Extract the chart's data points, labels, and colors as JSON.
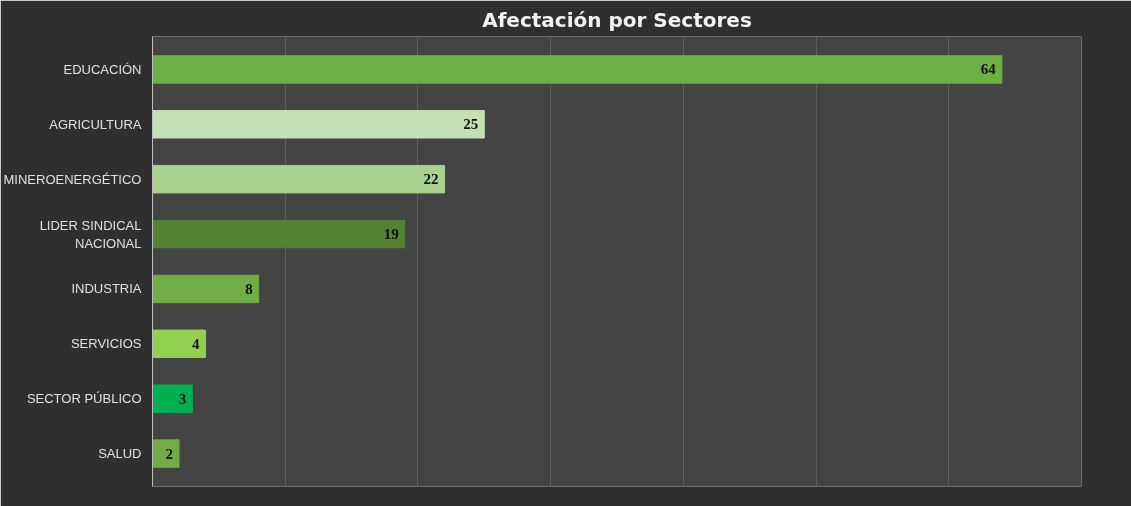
{
  "chart_data": {
    "type": "bar",
    "orientation": "horizontal",
    "title": "Afectación por Sectores",
    "categories": [
      "EDUCACIÓN",
      "AGRICULTURA",
      "MINEROENERGÉTICO",
      "LIDER SINDICAL NACIONAL",
      "INDUSTRIA",
      "SERVICIOS",
      "SECTOR PÚBLICO",
      "SALUD"
    ],
    "values": [
      64,
      25,
      22,
      19,
      8,
      4,
      3,
      2
    ],
    "colors": [
      "#6cb043",
      "#c5e0b4",
      "#a9d18e",
      "#548235",
      "#70ad47",
      "#92d050",
      "#00b050",
      "#70ad47"
    ],
    "xlim": [
      0,
      70
    ],
    "xticks": [
      {
        "value": 0,
        "label": null
      },
      {
        "value": 10,
        "label": null
      },
      {
        "value": 20,
        "label": null
      },
      {
        "value": 30,
        "label": null
      },
      {
        "value": 40,
        "label": null
      },
      {
        "value": 50,
        "label": null
      },
      {
        "value": 60,
        "label": null
      },
      {
        "value": 70,
        "label": null
      }
    ],
    "tick_labels": "y",
    "grid": "x",
    "data_labels": true
  }
}
